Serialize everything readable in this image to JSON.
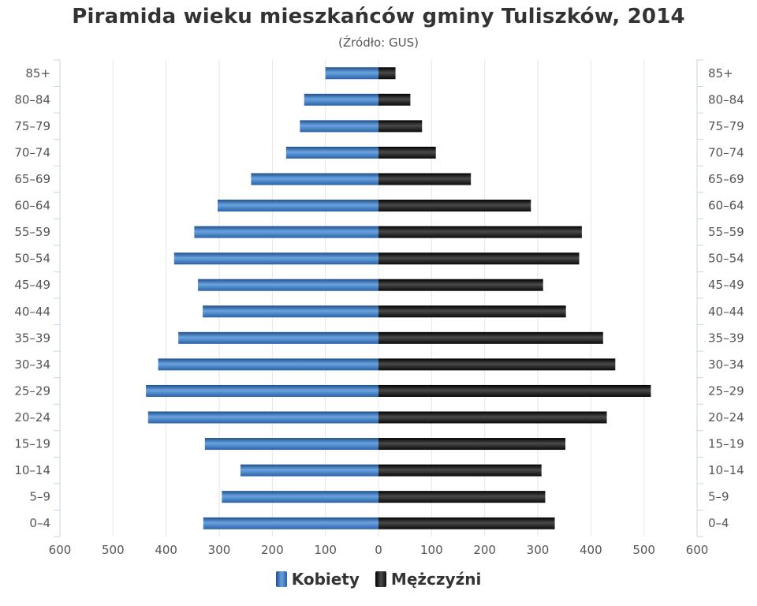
{
  "chart_data": {
    "type": "bar",
    "orientation": "horizontal",
    "title": "Piramida wieku mieszkańców gminy Tuliszków, 2014",
    "subtitle": "(Źródło: GUS)",
    "categories": [
      "85+",
      "80–84",
      "75–79",
      "70–74",
      "65–69",
      "60–64",
      "55–59",
      "50–54",
      "45–49",
      "40–44",
      "35–39",
      "30–34",
      "25–29",
      "20–24",
      "15–19",
      "10–14",
      "5–9",
      "0–4"
    ],
    "x_ticks": [
      "600",
      "500",
      "400",
      "300",
      "200",
      "100",
      "0",
      "100",
      "200",
      "300",
      "400",
      "500",
      "600"
    ],
    "xlim": [
      -600,
      600
    ],
    "grid": true,
    "legend_position": "bottom-center",
    "series": [
      {
        "name": "Kobiety",
        "color": "#3d78c0",
        "values": [
          100,
          140,
          148,
          174,
          240,
          303,
          347,
          385,
          340,
          331,
          377,
          415,
          438,
          434,
          327,
          260,
          295,
          330
        ]
      },
      {
        "name": "Mężczyźni",
        "color": "#111111",
        "values": [
          32,
          60,
          82,
          108,
          174,
          287,
          383,
          378,
          310,
          353,
          423,
          446,
          513,
          430,
          352,
          307,
          314,
          332
        ]
      }
    ]
  }
}
